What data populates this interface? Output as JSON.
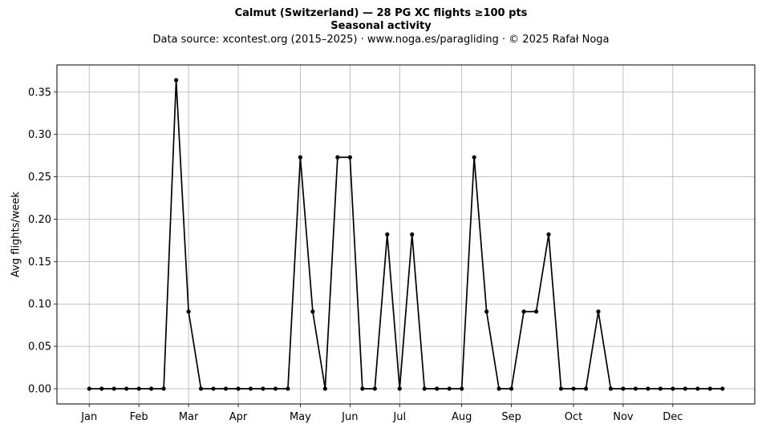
{
  "chart_data": {
    "type": "line",
    "title": "Calmut (Switzerland)  —  28 PG XC flights ≥100 pts",
    "subtitle": "Seasonal activity",
    "source": "Data source: xcontest.org (2015–2025)  ·  www.noga.es/paragliding  ·  © 2025 Rafał Noga",
    "xlabel": "",
    "ylabel": "Avg flights/week",
    "x_unit": "week of year",
    "xlim": [
      -1.6,
      54.6
    ],
    "ylim": [
      -0.018,
      0.382
    ],
    "grid": true,
    "line_color": "#000000",
    "x_ticks": [
      {
        "label": "Jan",
        "x": 1
      },
      {
        "label": "Feb",
        "x": 5
      },
      {
        "label": "Mar",
        "x": 9
      },
      {
        "label": "Apr",
        "x": 13
      },
      {
        "label": "May",
        "x": 18
      },
      {
        "label": "Jun",
        "x": 22
      },
      {
        "label": "Jul",
        "x": 26
      },
      {
        "label": "Aug",
        "x": 31
      },
      {
        "label": "Sep",
        "x": 35
      },
      {
        "label": "Oct",
        "x": 40
      },
      {
        "label": "Nov",
        "x": 44
      },
      {
        "label": "Dec",
        "x": 48
      }
    ],
    "y_ticks": [
      0.0,
      0.05,
      0.1,
      0.15,
      0.2,
      0.25,
      0.3,
      0.35
    ],
    "y_tick_labels": [
      "0.00",
      "0.05",
      "0.10",
      "0.15",
      "0.20",
      "0.25",
      "0.30",
      "0.35"
    ],
    "x": [
      1,
      2,
      3,
      4,
      5,
      6,
      7,
      8,
      9,
      10,
      11,
      12,
      13,
      14,
      15,
      16,
      17,
      18,
      19,
      20,
      21,
      22,
      23,
      24,
      25,
      26,
      27,
      28,
      29,
      30,
      31,
      32,
      33,
      34,
      35,
      36,
      37,
      38,
      39,
      40,
      41,
      42,
      43,
      44,
      45,
      46,
      47,
      48,
      49,
      50,
      51,
      52
    ],
    "y": [
      0,
      0,
      0,
      0,
      0,
      0,
      0,
      0.364,
      0.091,
      0,
      0,
      0,
      0,
      0,
      0,
      0,
      0,
      0.273,
      0.091,
      0,
      0.273,
      0.273,
      0,
      0,
      0.182,
      0,
      0.182,
      0,
      0,
      0,
      0,
      0.273,
      0.091,
      0,
      0,
      0.091,
      0.091,
      0.182,
      0,
      0,
      0,
      0.091,
      0,
      0,
      0,
      0,
      0,
      0,
      0,
      0,
      0,
      0
    ]
  }
}
